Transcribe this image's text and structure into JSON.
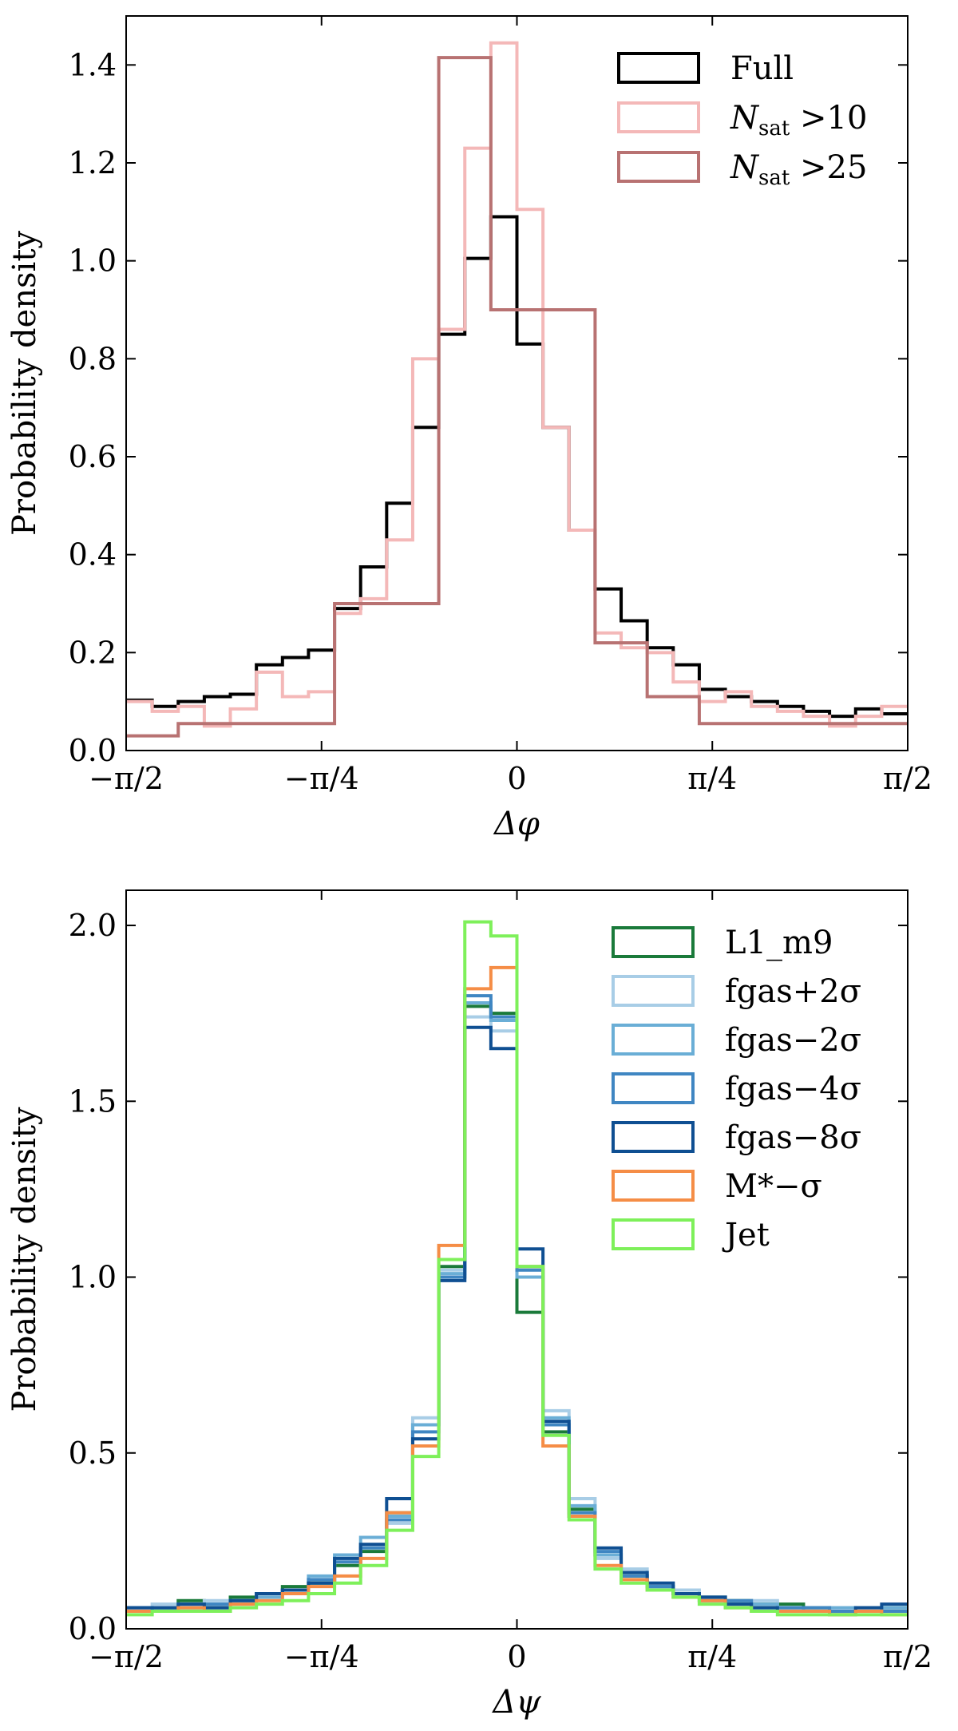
{
  "chart_data": [
    {
      "type": "histogram-step",
      "xlabel": "Δφ",
      "ylabel": "Probability density",
      "xlim": [
        -1.5708,
        1.5708
      ],
      "ylim": [
        0,
        1.5
      ],
      "xticks": [
        {
          "value": -1.5708,
          "label": "−π/2"
        },
        {
          "value": -0.7854,
          "label": "−π/4"
        },
        {
          "value": 0,
          "label": "0"
        },
        {
          "value": 0.7854,
          "label": "π/4"
        },
        {
          "value": 1.5708,
          "label": "π/2"
        }
      ],
      "yticks": [
        {
          "value": 0,
          "label": "0.0"
        },
        {
          "value": 0.2,
          "label": "0.2"
        },
        {
          "value": 0.4,
          "label": "0.4"
        },
        {
          "value": 0.6,
          "label": "0.6"
        },
        {
          "value": 0.8,
          "label": "0.8"
        },
        {
          "value": 1.0,
          "label": "1.0"
        },
        {
          "value": 1.2,
          "label": "1.2"
        },
        {
          "value": 1.4,
          "label": "1.4"
        }
      ],
      "legend_position": "top-right",
      "series": [
        {
          "name": "Full",
          "legend_main": "Full",
          "legend_sub": "",
          "legend_tail": "",
          "color": "#000000",
          "edges": [
            -1.5708,
            -1.4661,
            -1.3614,
            -1.2566,
            -1.1519,
            -1.0472,
            -0.9425,
            -0.8378,
            -0.733,
            -0.6283,
            -0.5236,
            -0.4189,
            -0.3142,
            -0.2094,
            -0.1047,
            0,
            0.1047,
            0.2094,
            0.3142,
            0.4189,
            0.5236,
            0.6283,
            0.733,
            0.8378,
            0.9425,
            1.0472,
            1.1519,
            1.2566,
            1.3614,
            1.4661,
            1.5708
          ],
          "values": [
            0.103,
            0.09,
            0.1,
            0.11,
            0.115,
            0.175,
            0.19,
            0.205,
            0.29,
            0.375,
            0.505,
            0.66,
            0.85,
            1.005,
            1.09,
            0.83,
            0.66,
            0.45,
            0.33,
            0.265,
            0.21,
            0.175,
            0.125,
            0.11,
            0.1,
            0.09,
            0.08,
            0.07,
            0.085,
            0.075
          ]
        },
        {
          "name": "Nsat >10",
          "legend_main": "N",
          "legend_sub": "sat",
          "legend_tail": " >10",
          "color": "#f4b8b8",
          "edges": [
            -1.5708,
            -1.4661,
            -1.3614,
            -1.2566,
            -1.1519,
            -1.0472,
            -0.9425,
            -0.8378,
            -0.733,
            -0.6283,
            -0.5236,
            -0.4189,
            -0.3142,
            -0.2094,
            -0.1047,
            0,
            0.1047,
            0.2094,
            0.3142,
            0.4189,
            0.5236,
            0.6283,
            0.733,
            0.8378,
            0.9425,
            1.0472,
            1.1519,
            1.2566,
            1.3614,
            1.4661,
            1.5708
          ],
          "values": [
            0.1,
            0.08,
            0.09,
            0.05,
            0.085,
            0.16,
            0.11,
            0.12,
            0.28,
            0.31,
            0.43,
            0.8,
            0.86,
            1.23,
            1.445,
            1.105,
            0.66,
            0.45,
            0.24,
            0.21,
            0.2,
            0.14,
            0.1,
            0.12,
            0.09,
            0.08,
            0.07,
            0.05,
            0.07,
            0.09
          ]
        },
        {
          "name": "Nsat >25",
          "legend_main": "N",
          "legend_sub": "sat",
          "legend_tail": " >25",
          "color": "#b87272",
          "edges": [
            -1.5708,
            -1.3614,
            -1.0472,
            -0.733,
            -0.5236,
            -0.3142,
            -0.1047,
            0.1047,
            0.3142,
            0.5236,
            0.733,
            1.0472,
            1.2566,
            1.5708
          ],
          "values": [
            0.03,
            0.055,
            0.055,
            0.3,
            0.3,
            1.415,
            0.9,
            0.9,
            0.22,
            0.11,
            0.055,
            0.055,
            0.055
          ]
        }
      ]
    },
    {
      "type": "histogram-step",
      "xlabel": "Δψ",
      "ylabel": "Probability density",
      "xlim": [
        -1.5708,
        1.5708
      ],
      "ylim": [
        0,
        2.1
      ],
      "xticks": [
        {
          "value": -1.5708,
          "label": "−π/2"
        },
        {
          "value": -0.7854,
          "label": "−π/4"
        },
        {
          "value": 0,
          "label": "0"
        },
        {
          "value": 0.7854,
          "label": "π/4"
        },
        {
          "value": 1.5708,
          "label": "π/2"
        }
      ],
      "yticks": [
        {
          "value": 0,
          "label": "0.0"
        },
        {
          "value": 0.5,
          "label": "0.5"
        },
        {
          "value": 1.0,
          "label": "1.0"
        },
        {
          "value": 1.5,
          "label": "1.5"
        },
        {
          "value": 2.0,
          "label": "2.0"
        }
      ],
      "legend_position": "top-right",
      "series": [
        {
          "name": "L1_m9",
          "legend_main": "L1_m9",
          "legend_sub": "",
          "legend_tail": "",
          "color": "#1a7a3a",
          "edges": [
            -1.5708,
            -1.4661,
            -1.3614,
            -1.2566,
            -1.1519,
            -1.0472,
            -0.9425,
            -0.8378,
            -0.733,
            -0.6283,
            -0.5236,
            -0.4189,
            -0.3142,
            -0.2094,
            -0.1047,
            0,
            0.1047,
            0.2094,
            0.3142,
            0.4189,
            0.5236,
            0.6283,
            0.733,
            0.8378,
            0.9425,
            1.0472,
            1.1519,
            1.2566,
            1.3614,
            1.4661,
            1.5708
          ],
          "values": [
            0.05,
            0.06,
            0.08,
            0.06,
            0.09,
            0.1,
            0.12,
            0.13,
            0.18,
            0.22,
            0.33,
            0.58,
            1.03,
            1.77,
            1.75,
            0.9,
            0.56,
            0.34,
            0.21,
            0.15,
            0.12,
            0.1,
            0.09,
            0.08,
            0.07,
            0.07,
            0.06,
            0.05,
            0.05,
            0.06
          ]
        },
        {
          "name": "fgas+2σ",
          "legend_main": "fgas+2σ",
          "legend_sub": "",
          "legend_tail": "",
          "color": "#a8cde6",
          "edges": [
            -1.5708,
            -1.4661,
            -1.3614,
            -1.2566,
            -1.1519,
            -1.0472,
            -0.9425,
            -0.8378,
            -0.733,
            -0.6283,
            -0.5236,
            -0.4189,
            -0.3142,
            -0.2094,
            -0.1047,
            0,
            0.1047,
            0.2094,
            0.3142,
            0.4189,
            0.5236,
            0.6283,
            0.733,
            0.8378,
            0.9425,
            1.0472,
            1.1519,
            1.2566,
            1.3614,
            1.4661,
            1.5708
          ],
          "values": [
            0.06,
            0.07,
            0.06,
            0.08,
            0.07,
            0.09,
            0.1,
            0.14,
            0.2,
            0.24,
            0.3,
            0.6,
            1.02,
            1.74,
            1.7,
            1.03,
            0.62,
            0.37,
            0.2,
            0.17,
            0.13,
            0.11,
            0.08,
            0.07,
            0.08,
            0.06,
            0.06,
            0.05,
            0.06,
            0.05
          ]
        },
        {
          "name": "fgas−2σ",
          "legend_main": "fgas−2σ",
          "legend_sub": "",
          "legend_tail": "",
          "color": "#6aaed6",
          "edges": [
            -1.5708,
            -1.4661,
            -1.3614,
            -1.2566,
            -1.1519,
            -1.0472,
            -0.9425,
            -0.8378,
            -0.733,
            -0.6283,
            -0.5236,
            -0.4189,
            -0.3142,
            -0.2094,
            -0.1047,
            0,
            0.1047,
            0.2094,
            0.3142,
            0.4189,
            0.5236,
            0.6283,
            0.733,
            0.8378,
            0.9425,
            1.0472,
            1.1519,
            1.2566,
            1.3614,
            1.4661,
            1.5708
          ],
          "values": [
            0.06,
            0.06,
            0.07,
            0.07,
            0.08,
            0.09,
            0.11,
            0.15,
            0.21,
            0.26,
            0.32,
            0.58,
            1.01,
            1.78,
            1.73,
            1.0,
            0.6,
            0.35,
            0.21,
            0.16,
            0.12,
            0.1,
            0.09,
            0.07,
            0.07,
            0.06,
            0.05,
            0.06,
            0.05,
            0.06
          ]
        },
        {
          "name": "fgas−4σ",
          "legend_main": "fgas−4σ",
          "legend_sub": "",
          "legend_tail": "",
          "color": "#3f86c2",
          "edges": [
            -1.5708,
            -1.4661,
            -1.3614,
            -1.2566,
            -1.1519,
            -1.0472,
            -0.9425,
            -0.8378,
            -0.733,
            -0.6283,
            -0.5236,
            -0.4189,
            -0.3142,
            -0.2094,
            -0.1047,
            0,
            0.1047,
            0.2094,
            0.3142,
            0.4189,
            0.5236,
            0.6283,
            0.733,
            0.8378,
            0.9425,
            1.0472,
            1.1519,
            1.2566,
            1.3614,
            1.4661,
            1.5708
          ],
          "values": [
            0.05,
            0.06,
            0.06,
            0.07,
            0.08,
            0.1,
            0.11,
            0.14,
            0.19,
            0.23,
            0.31,
            0.56,
            1.0,
            1.8,
            1.74,
            1.02,
            0.58,
            0.33,
            0.22,
            0.15,
            0.12,
            0.1,
            0.08,
            0.08,
            0.06,
            0.06,
            0.06,
            0.05,
            0.05,
            0.05
          ]
        },
        {
          "name": "fgas−8σ",
          "legend_main": "fgas−8σ",
          "legend_sub": "",
          "legend_tail": "",
          "color": "#0f4f92",
          "edges": [
            -1.5708,
            -1.4661,
            -1.3614,
            -1.2566,
            -1.1519,
            -1.0472,
            -0.9425,
            -0.8378,
            -0.733,
            -0.6283,
            -0.5236,
            -0.4189,
            -0.3142,
            -0.2094,
            -0.1047,
            0,
            0.1047,
            0.2094,
            0.3142,
            0.4189,
            0.5236,
            0.6283,
            0.733,
            0.8378,
            0.9425,
            1.0472,
            1.1519,
            1.2566,
            1.3614,
            1.4661,
            1.5708
          ],
          "values": [
            0.06,
            0.06,
            0.07,
            0.06,
            0.08,
            0.1,
            0.11,
            0.13,
            0.2,
            0.24,
            0.37,
            0.54,
            0.99,
            1.71,
            1.65,
            1.08,
            0.59,
            0.32,
            0.23,
            0.16,
            0.13,
            0.1,
            0.09,
            0.07,
            0.06,
            0.05,
            0.05,
            0.04,
            0.06,
            0.07
          ]
        },
        {
          "name": "M*−σ",
          "legend_main": "M*−σ",
          "legend_sub": "",
          "legend_tail": "",
          "color": "#f58d46",
          "edges": [
            -1.5708,
            -1.4661,
            -1.3614,
            -1.2566,
            -1.1519,
            -1.0472,
            -0.9425,
            -0.8378,
            -0.733,
            -0.6283,
            -0.5236,
            -0.4189,
            -0.3142,
            -0.2094,
            -0.1047,
            0,
            0.1047,
            0.2094,
            0.3142,
            0.4189,
            0.5236,
            0.6283,
            0.733,
            0.8378,
            0.9425,
            1.0472,
            1.1519,
            1.2566,
            1.3614,
            1.4661,
            1.5708
          ],
          "values": [
            0.05,
            0.05,
            0.06,
            0.05,
            0.07,
            0.08,
            0.1,
            0.12,
            0.15,
            0.2,
            0.33,
            0.52,
            1.09,
            1.82,
            1.88,
            1.03,
            0.52,
            0.32,
            0.18,
            0.14,
            0.11,
            0.09,
            0.08,
            0.06,
            0.05,
            0.05,
            0.05,
            0.04,
            0.05,
            0.04
          ]
        },
        {
          "name": "Jet",
          "legend_main": "Jet",
          "legend_sub": "",
          "legend_tail": "",
          "color": "#7ef05a",
          "edges": [
            -1.5708,
            -1.4661,
            -1.3614,
            -1.2566,
            -1.1519,
            -1.0472,
            -0.9425,
            -0.8378,
            -0.733,
            -0.6283,
            -0.5236,
            -0.4189,
            -0.3142,
            -0.2094,
            -0.1047,
            0,
            0.1047,
            0.2094,
            0.3142,
            0.4189,
            0.5236,
            0.6283,
            0.733,
            0.8378,
            0.9425,
            1.0472,
            1.1519,
            1.2566,
            1.3614,
            1.4661,
            1.5708
          ],
          "values": [
            0.04,
            0.05,
            0.05,
            0.05,
            0.06,
            0.07,
            0.08,
            0.1,
            0.13,
            0.18,
            0.28,
            0.49,
            1.05,
            2.01,
            1.97,
            1.03,
            0.55,
            0.31,
            0.17,
            0.13,
            0.11,
            0.09,
            0.07,
            0.06,
            0.05,
            0.04,
            0.04,
            0.04,
            0.04,
            0.04
          ]
        }
      ]
    }
  ]
}
